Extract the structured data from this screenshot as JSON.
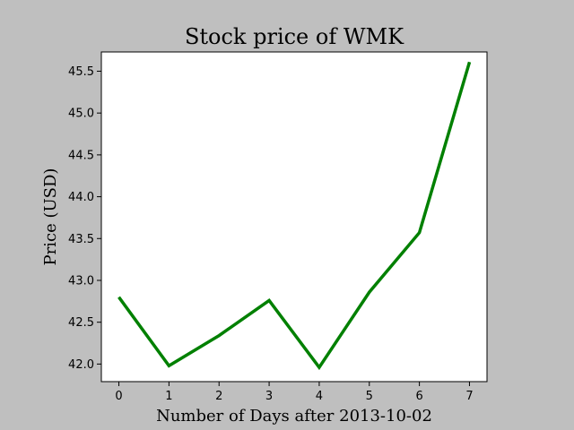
{
  "chart_data": {
    "type": "line",
    "title": "Stock price of WMK",
    "xlabel": "Number of Days after 2013-10-02",
    "ylabel": "Price (USD)",
    "x": [
      0,
      1,
      2,
      3,
      4,
      5,
      6,
      7
    ],
    "series": [
      {
        "values": [
          42.8,
          41.98,
          42.34,
          42.76,
          41.96,
          42.86,
          43.57,
          45.61
        ],
        "color": "#008000"
      }
    ],
    "xlim": [
      -0.35,
      7.35
    ],
    "ylim": [
      41.79,
      45.73
    ],
    "xticks": [
      0,
      1,
      2,
      3,
      4,
      5,
      6,
      7
    ],
    "xtick_labels": [
      "0",
      "1",
      "2",
      "3",
      "4",
      "5",
      "6",
      "7"
    ],
    "yticks": [
      42.0,
      42.5,
      43.0,
      43.5,
      44.0,
      44.5,
      45.0,
      45.5
    ],
    "ytick_labels": [
      "42.0",
      "42.5",
      "43.0",
      "43.5",
      "44.0",
      "44.5",
      "45.0",
      "45.5"
    ],
    "grid": false,
    "background_color": "#bfbfbf",
    "plot_background_color": "#ffffff"
  }
}
